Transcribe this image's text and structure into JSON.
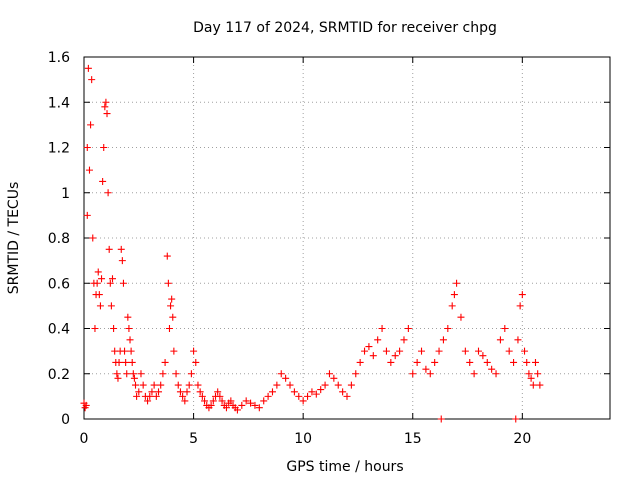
{
  "chart_data": {
    "type": "scatter",
    "title": "Day 117 of 2024, SRMTID for receiver chpg",
    "xlabel": "GPS time / hours",
    "ylabel": "SRMTID / TECUs",
    "xlim": [
      0,
      24
    ],
    "ylim": [
      0,
      1.6
    ],
    "xticks": [
      0,
      5,
      10,
      15,
      20
    ],
    "xtick_labels": [
      "0",
      "5",
      "10",
      "15",
      "20"
    ],
    "yticks": [
      0,
      0.2,
      0.4,
      0.6,
      0.8,
      1.0,
      1.2,
      1.4,
      1.6
    ],
    "ytick_labels": [
      "0",
      "0.2",
      "0.4",
      "0.6",
      "0.8",
      "1",
      "1.2",
      "1.4",
      "1.6"
    ],
    "grid": true,
    "marker": "+",
    "color": "#ff0000",
    "series": [
      {
        "name": "SRMTID",
        "x": [
          0.0,
          0.05,
          0.1,
          0.15,
          0.2,
          0.15,
          0.25,
          0.3,
          0.35,
          0.4,
          0.45,
          0.5,
          0.55,
          0.6,
          0.65,
          0.7,
          0.75,
          0.8,
          0.85,
          0.9,
          0.95,
          1.0,
          1.05,
          1.1,
          1.15,
          1.2,
          1.25,
          1.3,
          1.35,
          1.4,
          1.45,
          1.5,
          1.55,
          1.6,
          1.65,
          1.7,
          1.75,
          1.8,
          1.85,
          1.9,
          1.95,
          2.0,
          2.05,
          2.1,
          2.15,
          2.2,
          2.25,
          2.3,
          2.35,
          2.4,
          2.5,
          2.6,
          2.7,
          2.8,
          2.9,
          3.0,
          3.1,
          3.2,
          3.3,
          3.4,
          3.5,
          3.6,
          3.7,
          3.8,
          3.85,
          3.9,
          3.95,
          4.0,
          4.05,
          4.1,
          4.2,
          4.3,
          4.4,
          4.5,
          4.6,
          4.7,
          4.8,
          4.9,
          5.0,
          5.1,
          5.2,
          5.3,
          5.4,
          5.5,
          5.6,
          5.7,
          5.8,
          5.9,
          6.0,
          6.1,
          6.2,
          6.3,
          6.4,
          6.5,
          6.6,
          6.7,
          6.8,
          6.9,
          7.0,
          7.2,
          7.4,
          7.6,
          7.8,
          8.0,
          8.2,
          8.4,
          8.6,
          8.8,
          9.0,
          9.2,
          9.4,
          9.6,
          9.8,
          10.0,
          10.2,
          10.4,
          10.6,
          10.8,
          11.0,
          11.2,
          11.4,
          11.6,
          11.8,
          12.0,
          12.2,
          12.4,
          12.6,
          12.8,
          13.0,
          13.2,
          13.4,
          13.6,
          13.8,
          14.0,
          14.2,
          14.4,
          14.6,
          14.8,
          15.0,
          15.2,
          15.4,
          15.6,
          15.8,
          16.0,
          16.2,
          16.3,
          16.4,
          16.6,
          16.8,
          16.9,
          17.0,
          17.2,
          17.4,
          17.6,
          17.8,
          18.0,
          18.2,
          18.4,
          18.6,
          18.8,
          19.0,
          19.2,
          19.4,
          19.6,
          19.7,
          19.8,
          19.9,
          20.0,
          20.1,
          20.2,
          20.3,
          20.4,
          20.5,
          20.6,
          20.7,
          20.8
        ],
        "y": [
          0.07,
          0.05,
          0.06,
          0.9,
          1.55,
          1.2,
          1.1,
          1.3,
          1.5,
          0.8,
          0.6,
          0.4,
          0.55,
          0.6,
          0.65,
          0.55,
          0.5,
          0.62,
          1.05,
          1.2,
          1.38,
          1.4,
          1.35,
          1.0,
          0.75,
          0.6,
          0.5,
          0.62,
          0.4,
          0.3,
          0.25,
          0.2,
          0.18,
          0.25,
          0.3,
          0.75,
          0.7,
          0.6,
          0.3,
          0.25,
          0.2,
          0.45,
          0.4,
          0.35,
          0.3,
          0.25,
          0.2,
          0.18,
          0.15,
          0.1,
          0.12,
          0.2,
          0.15,
          0.1,
          0.08,
          0.1,
          0.12,
          0.15,
          0.1,
          0.12,
          0.15,
          0.2,
          0.25,
          0.72,
          0.6,
          0.4,
          0.5,
          0.53,
          0.45,
          0.3,
          0.2,
          0.15,
          0.12,
          0.1,
          0.08,
          0.12,
          0.15,
          0.2,
          0.3,
          0.25,
          0.15,
          0.12,
          0.1,
          0.08,
          0.06,
          0.05,
          0.06,
          0.08,
          0.1,
          0.12,
          0.1,
          0.08,
          0.06,
          0.05,
          0.07,
          0.08,
          0.06,
          0.05,
          0.04,
          0.06,
          0.08,
          0.07,
          0.06,
          0.05,
          0.08,
          0.1,
          0.12,
          0.15,
          0.2,
          0.18,
          0.15,
          0.12,
          0.1,
          0.08,
          0.1,
          0.12,
          0.11,
          0.13,
          0.15,
          0.2,
          0.18,
          0.15,
          0.12,
          0.1,
          0.15,
          0.2,
          0.25,
          0.3,
          0.32,
          0.28,
          0.35,
          0.4,
          0.3,
          0.25,
          0.28,
          0.3,
          0.35,
          0.4,
          0.2,
          0.25,
          0.3,
          0.22,
          0.2,
          0.25,
          0.3,
          0.0,
          0.35,
          0.4,
          0.5,
          0.55,
          0.6,
          0.45,
          0.3,
          0.25,
          0.2,
          0.3,
          0.28,
          0.25,
          0.22,
          0.2,
          0.35,
          0.4,
          0.3,
          0.25,
          0.0,
          0.35,
          0.5,
          0.55,
          0.3,
          0.25,
          0.2,
          0.18,
          0.15,
          0.25,
          0.2,
          0.15
        ]
      }
    ]
  }
}
